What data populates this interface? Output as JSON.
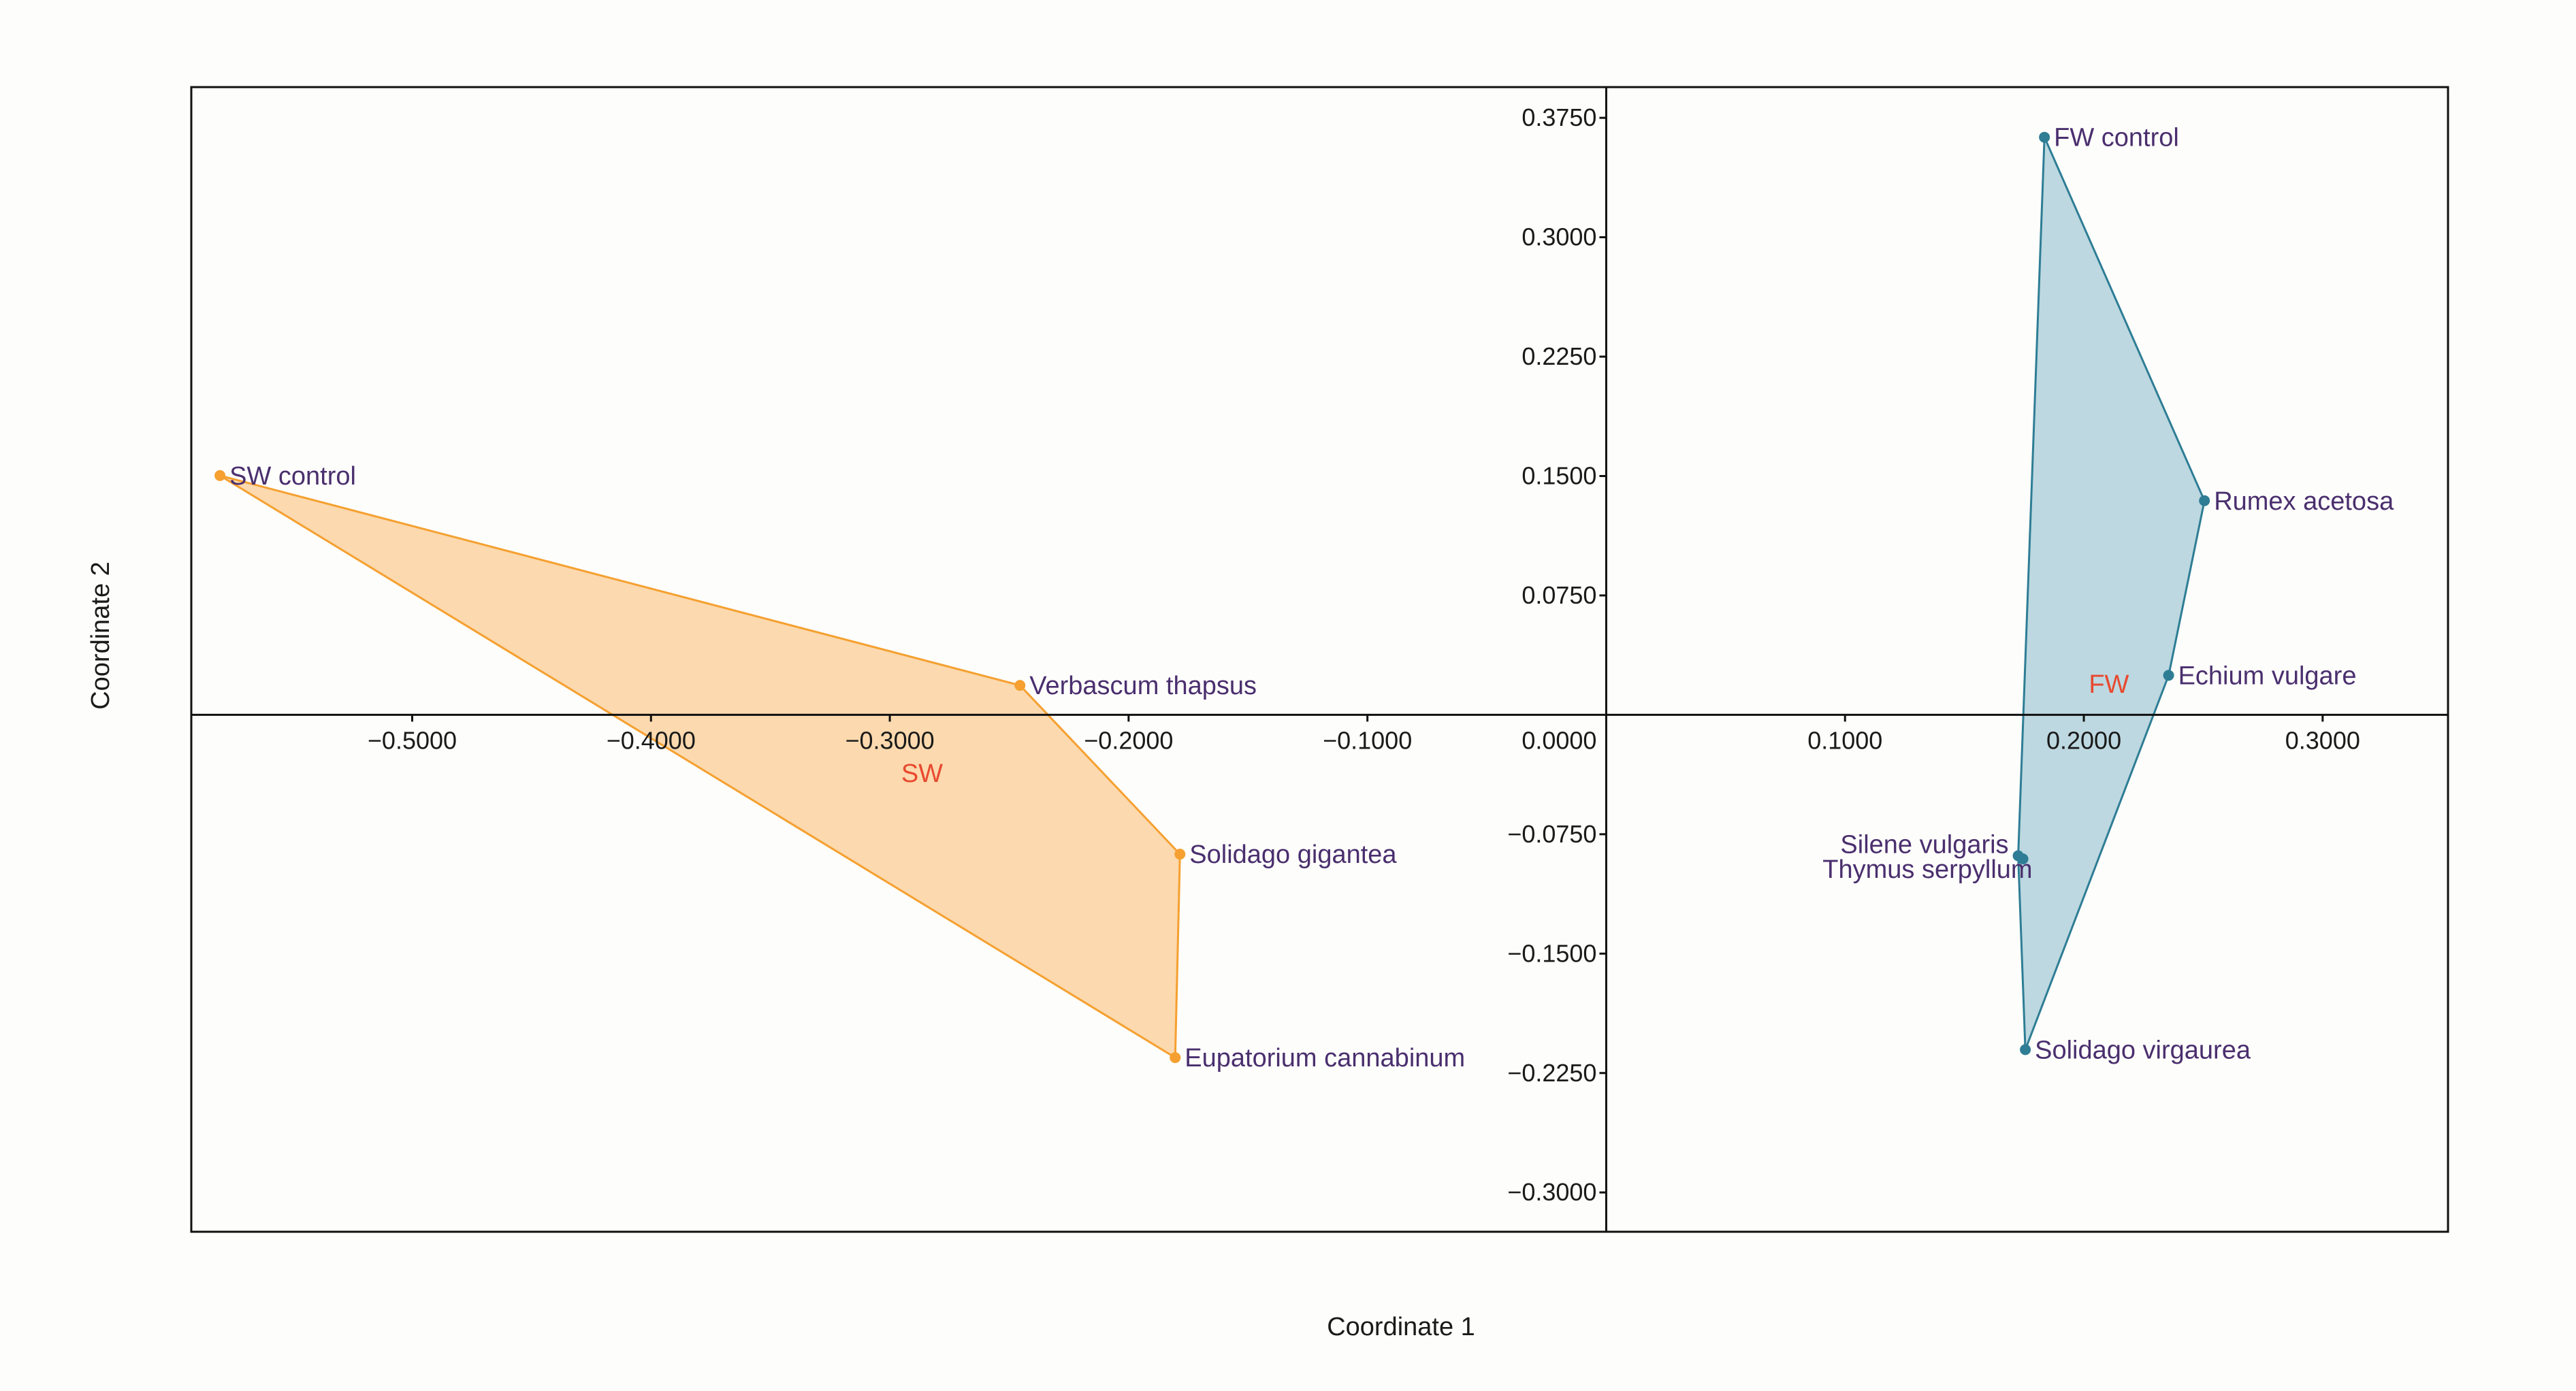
{
  "chart_data": {
    "type": "scatter",
    "title": "",
    "xlabel": "Coordinate 1",
    "ylabel": "Coordinate 2",
    "xlim": [
      -0.5925,
      0.3525
    ],
    "ylim": [
      -0.3247,
      0.3943
    ],
    "x_ticks": [
      {
        "value": -0.5,
        "label": "−0.5000"
      },
      {
        "value": -0.4,
        "label": "−0.4000"
      },
      {
        "value": -0.3,
        "label": "−0.3000"
      },
      {
        "value": -0.2,
        "label": "−0.2000"
      },
      {
        "value": -0.1,
        "label": "−0.1000"
      },
      {
        "value": 0.1,
        "label": "0.1000"
      },
      {
        "value": 0.2,
        "label": "0.2000"
      },
      {
        "value": 0.3,
        "label": "0.3000"
      }
    ],
    "y_ticks": [
      {
        "value": 0.375,
        "label": "0.3750"
      },
      {
        "value": 0.3,
        "label": "0.3000"
      },
      {
        "value": 0.225,
        "label": "0.2250"
      },
      {
        "value": 0.15,
        "label": "0.1500"
      },
      {
        "value": 0.075,
        "label": "0.0750"
      },
      {
        "value": 0.0,
        "label": "0.0000"
      },
      {
        "value": -0.075,
        "label": "−0.0750"
      },
      {
        "value": -0.15,
        "label": "−0.1500"
      },
      {
        "value": -0.225,
        "label": "−0.2250"
      },
      {
        "value": -0.3,
        "label": "−0.3000"
      }
    ],
    "groups": [
      {
        "name": "SW",
        "label_pos": {
          "x": -0.2865,
          "y": -0.0365
        },
        "color": "#f5a030",
        "fill": "#fcd9ae",
        "points": [
          {
            "name": "SW control",
            "x": -0.5805,
            "y": 0.1503
          },
          {
            "name": "Verbascum thapsus",
            "x": -0.2455,
            "y": 0.0185
          },
          {
            "name": "Solidago gigantea",
            "x": -0.1785,
            "y": -0.0875
          },
          {
            "name": "Eupatorium cannabinum",
            "x": -0.1805,
            "y": -0.2153
          }
        ],
        "hull": [
          "SW control",
          "Verbascum thapsus",
          "Solidago gigantea",
          "Eupatorium cannabinum"
        ]
      },
      {
        "name": "FW",
        "label_pos": {
          "x": 0.2105,
          "y": 0.0195
        },
        "color": "#2e7d95",
        "fill": "#bdd8e0",
        "points": [
          {
            "name": "FW control",
            "x": 0.1835,
            "y": 0.3628
          },
          {
            "name": "Rumex acetosa",
            "x": 0.2505,
            "y": 0.1345
          },
          {
            "name": "Echium vulgare",
            "x": 0.2355,
            "y": 0.0248
          },
          {
            "name": "Silene vulgaris",
            "x": 0.1725,
            "y": -0.0885
          },
          {
            "name": "Thymus serpyllum",
            "x": 0.1745,
            "y": -0.0905
          },
          {
            "name": "Solidago virgaurea",
            "x": 0.1755,
            "y": -0.2103
          }
        ],
        "hull": [
          "FW control",
          "Rumex acetosa",
          "Echium vulgare",
          "Solidago virgaurea",
          "Silene vulgaris"
        ]
      }
    ],
    "grid": false,
    "legend": "none",
    "group_label_color": "#e8492f",
    "axis_color": "#111111"
  }
}
